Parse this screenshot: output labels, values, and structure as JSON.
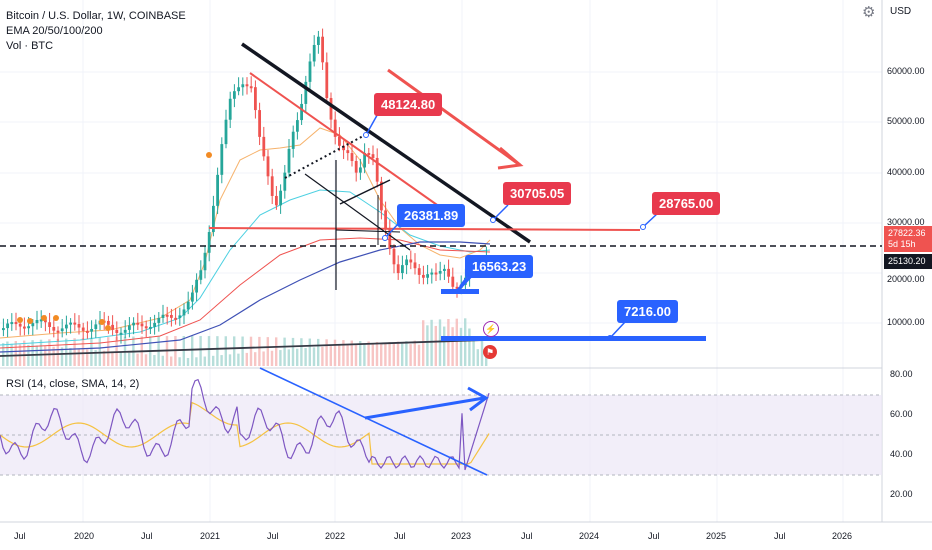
{
  "legend": {
    "symbol": "Bitcoin / U.S. Dollar, 1W, COINBASE",
    "ema": "EMA 20/50/100/200",
    "vol": "Vol · BTC"
  },
  "rsi_legend": "RSI (14, close, SMA, 14, 2)",
  "currency": "USD",
  "price_axis": [
    "60000.00",
    "50000.00",
    "40000.00",
    "30000.00",
    "20000.00",
    "10000.00"
  ],
  "rsi_axis": [
    "80.00",
    "60.00",
    "40.00",
    "20.00"
  ],
  "time_axis": [
    "Jul",
    "2020",
    "Jul",
    "2021",
    "Jul",
    "2022",
    "Jul",
    "2023",
    "Jul",
    "2024",
    "Jul",
    "2025",
    "Jul",
    "2026"
  ],
  "current_price": "27822.36",
  "countdown": "5d 15h",
  "line_price": "25130.20",
  "annotations": {
    "a48124": "48124.80",
    "a30705": "30705.05",
    "a28765": "28765.00",
    "a26381": "26381.89",
    "a16563": "16563.23",
    "a7216": "7216.00"
  },
  "colors": {
    "up": "#26a69a",
    "down": "#ef5350",
    "red_label": "#e8394d",
    "blue_label": "#2962ff",
    "rsi_line": "#7e57c2",
    "rsi_sma": "#f5c242",
    "rsi_band": "#ede7f6"
  },
  "icons": [
    "settings-gear-icon",
    "lightning-icon",
    "flag-icon"
  ]
}
